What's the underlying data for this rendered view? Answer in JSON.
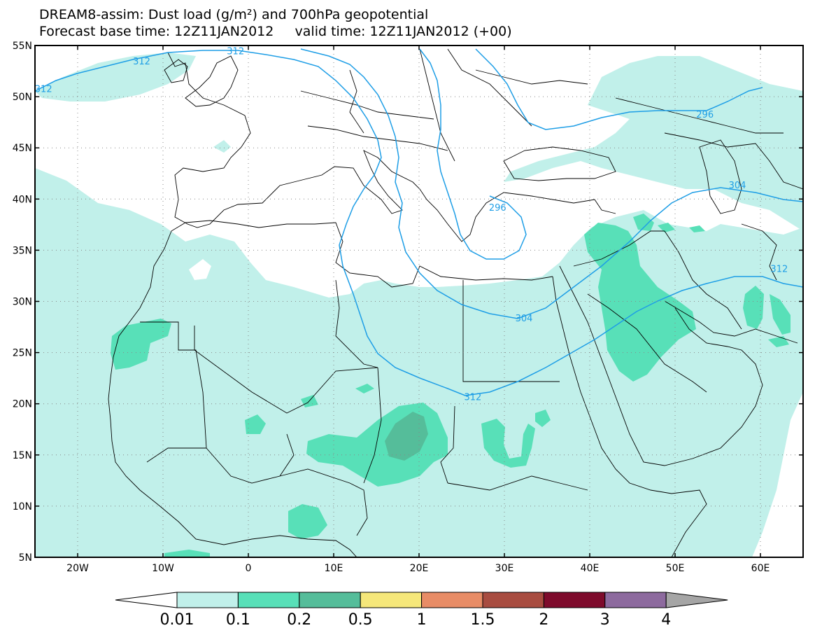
{
  "header": {
    "title_line1": "DREAM8-assim: Dust load (g/m²) and 700hPa geopotential",
    "title_line2": "Forecast base time: 12Z11JAN2012     valid time: 12Z11JAN2012 (+00)"
  },
  "axes": {
    "lon_range": [
      -25,
      65
    ],
    "lat_range": [
      5,
      55
    ],
    "y_ticks": [
      {
        "value": 55,
        "label": "55N"
      },
      {
        "value": 50,
        "label": "50N"
      },
      {
        "value": 45,
        "label": "45N"
      },
      {
        "value": 40,
        "label": "40N"
      },
      {
        "value": 35,
        "label": "35N"
      },
      {
        "value": 30,
        "label": "30N"
      },
      {
        "value": 25,
        "label": "25N"
      },
      {
        "value": 20,
        "label": "20N"
      },
      {
        "value": 15,
        "label": "15N"
      },
      {
        "value": 10,
        "label": "10N"
      },
      {
        "value": 5,
        "label": "5N"
      }
    ],
    "x_ticks": [
      {
        "value": -20,
        "label": "20W"
      },
      {
        "value": -10,
        "label": "10W"
      },
      {
        "value": 0,
        "label": "0"
      },
      {
        "value": 10,
        "label": "10E"
      },
      {
        "value": 20,
        "label": "20E"
      },
      {
        "value": 30,
        "label": "30E"
      },
      {
        "value": 40,
        "label": "40E"
      },
      {
        "value": 50,
        "label": "50E"
      },
      {
        "value": 60,
        "label": "60E"
      }
    ],
    "gridlines": true
  },
  "contour_labels": [
    {
      "text": "312",
      "lon": -12.5,
      "lat": 53.5
    },
    {
      "text": "312",
      "lon": -1.5,
      "lat": 54.5
    },
    {
      "text": "312",
      "lon": -24,
      "lat": 50.8
    },
    {
      "text": "296",
      "lon": 53.5,
      "lat": 48.3
    },
    {
      "text": "304",
      "lon": 57.3,
      "lat": 41.4
    },
    {
      "text": "296",
      "lon": 29.2,
      "lat": 39.2
    },
    {
      "text": "304",
      "lon": 32.3,
      "lat": 28.4
    },
    {
      "text": "312",
      "lon": 62.2,
      "lat": 33.2
    },
    {
      "text": "312",
      "lon": 26.3,
      "lat": 20.7
    }
  ],
  "colorbar": {
    "labels": [
      "0.01",
      "0.1",
      "0.2",
      "0.5",
      "1",
      "1.5",
      "2",
      "3",
      "4"
    ],
    "colors": [
      "#ffffff",
      "#c1f0ea",
      "#58e0b8",
      "#55bd9a",
      "#f5e77a",
      "#e88c66",
      "#a84c40",
      "#7e0b2c",
      "#8d6a9e",
      "#a5a5a5"
    ]
  },
  "colors": {
    "dust_low": "#c1f0ea",
    "dust_mid": "#58e0b8",
    "dust_high": "#55bd9a",
    "contour": "#1e9ee6",
    "border": "#000000"
  }
}
